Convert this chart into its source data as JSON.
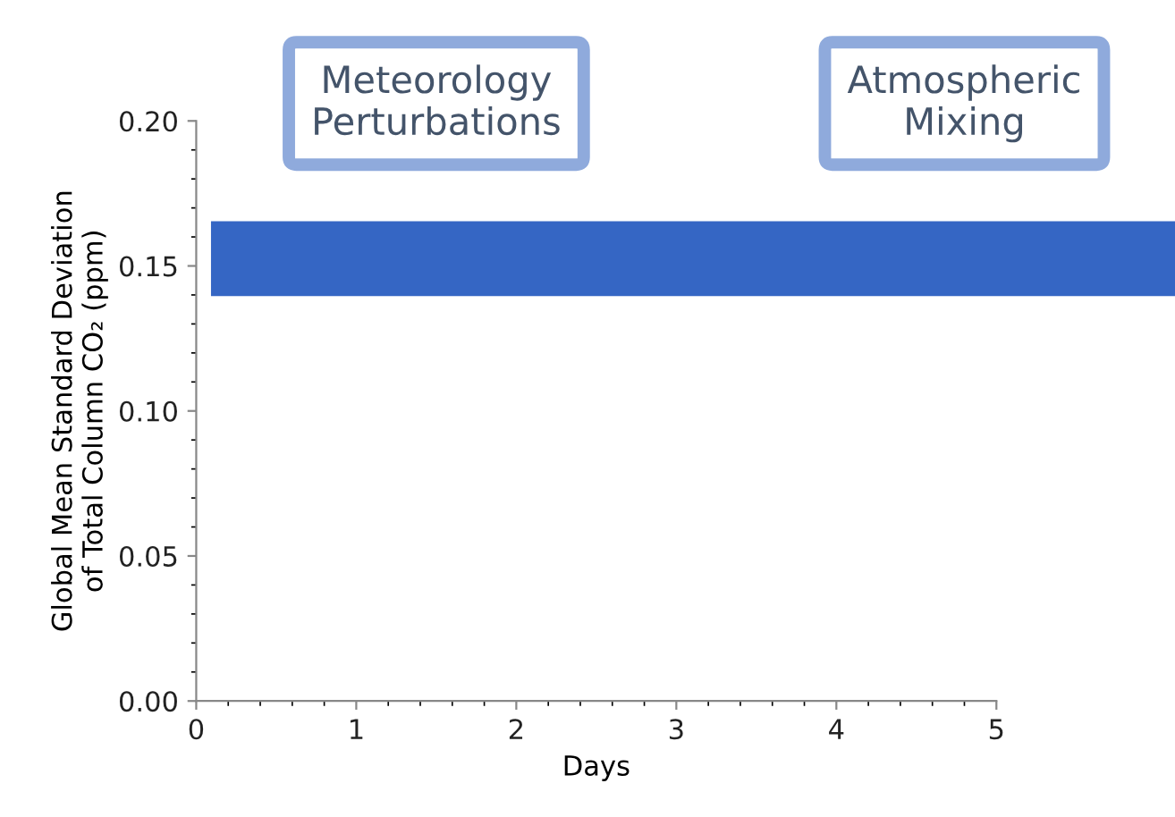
{
  "chart_data": {
    "type": "line",
    "xlabel": "Days",
    "ylabel": "Global Mean Standard Deviation\nof Total Column CO₂ (ppm)",
    "xlim": [
      0,
      5
    ],
    "xticks": [
      0,
      1,
      2,
      3,
      4,
      5
    ],
    "ylim": [
      0,
      0.2
    ],
    "yticks": [
      {
        "value": 0,
        "label": "0.00"
      },
      {
        "value": 0.05,
        "label": "0.05"
      },
      {
        "value": 0.1,
        "label": "0.10"
      },
      {
        "value": 0.15,
        "label": "0.15"
      },
      {
        "value": 0.2,
        "label": "0.20"
      }
    ],
    "bands": [
      {
        "axis": "y",
        "from": 0.14,
        "to": 0.165,
        "color": "#3566c4"
      }
    ],
    "annotations": [
      "Meteorology\nPerturbations",
      "Atmospheric\nMixing"
    ],
    "grid": false
  }
}
